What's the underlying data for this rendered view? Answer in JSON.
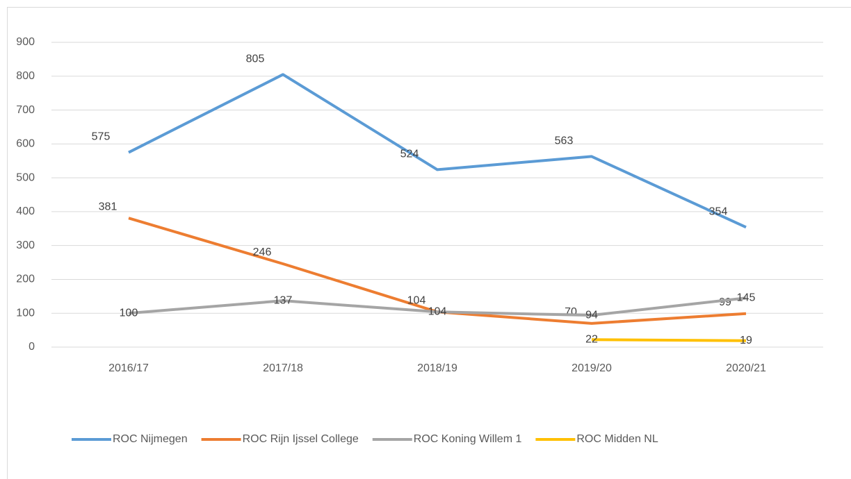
{
  "chart_data": {
    "type": "line",
    "categories": [
      "2016/17",
      "2017/18",
      "2018/19",
      "2019/20",
      "2020/21"
    ],
    "series": [
      {
        "name": "ROC Nijmegen",
        "color": "#5b9bd5",
        "values": [
          575,
          805,
          524,
          563,
          354
        ]
      },
      {
        "name": "ROC Rijn Ijssel College",
        "color": "#ed7d31",
        "values": [
          381,
          246,
          104,
          70,
          99
        ]
      },
      {
        "name": "ROC Koning Willem 1",
        "color": "#a5a5a5",
        "values": [
          100,
          137,
          104,
          94,
          145
        ]
      },
      {
        "name": "ROC Midden NL",
        "color": "#ffc000",
        "values": [
          null,
          null,
          null,
          22,
          19
        ]
      }
    ],
    "ylim": [
      0,
      900
    ],
    "yticks": [
      0,
      100,
      200,
      300,
      400,
      500,
      600,
      700,
      800,
      900
    ],
    "grid": true,
    "legend": "bottom"
  }
}
